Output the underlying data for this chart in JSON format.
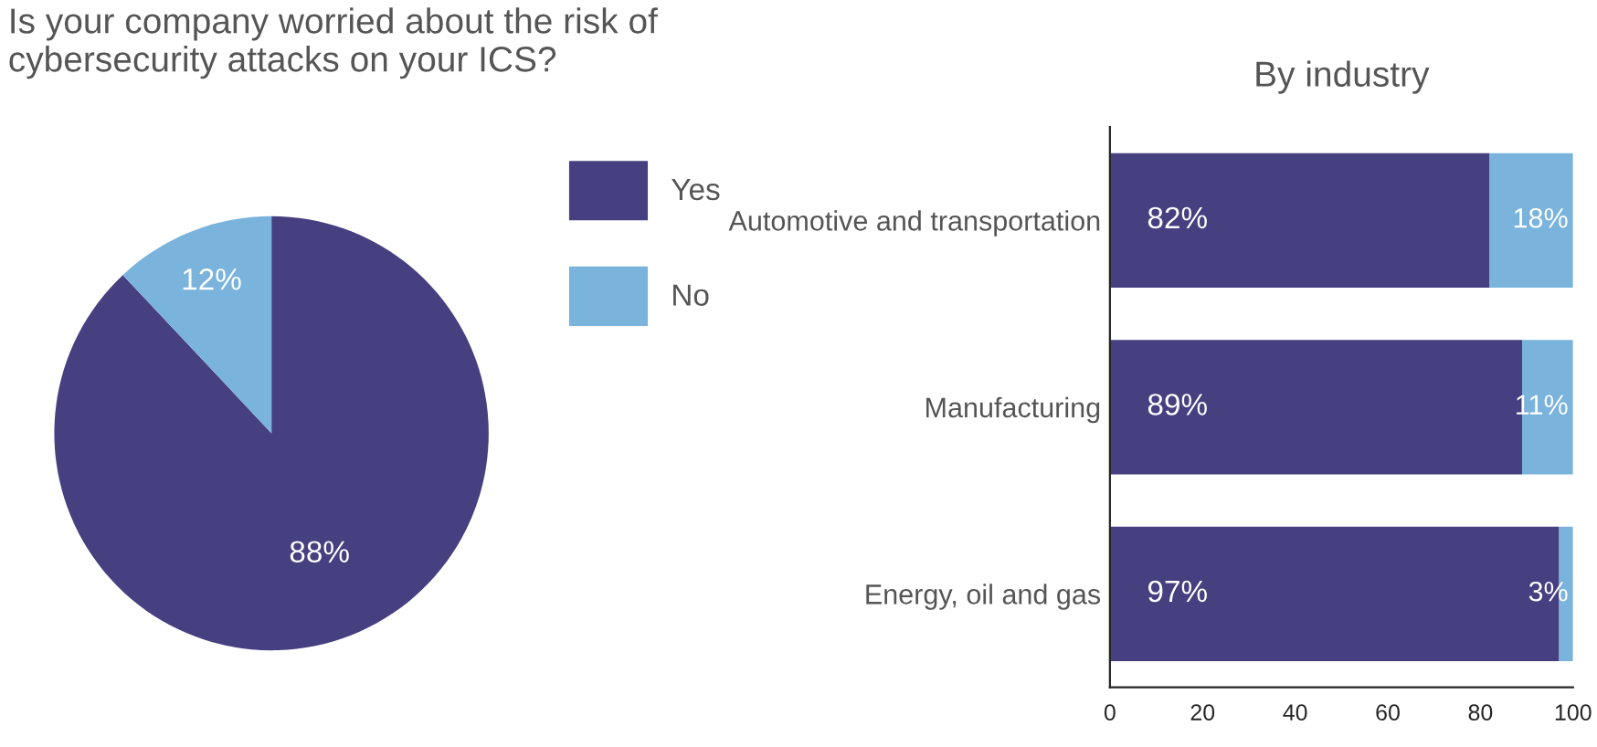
{
  "chart_data": [
    {
      "type": "pie",
      "title": "Is your company worried about the risk of\ncybersecurity attacks on your ICS?",
      "categories": [
        "Yes",
        "No"
      ],
      "values": [
        88,
        12
      ],
      "colors": [
        "#463f80",
        "#7ab3db"
      ],
      "value_labels": [
        "88%",
        "12%"
      ],
      "legend": "right"
    },
    {
      "type": "bar",
      "title": "By industry",
      "orientation": "horizontal",
      "stacked": true,
      "categories": [
        "Automotive and transportation",
        "Manufacturing",
        "Energy, oil and gas"
      ],
      "series": [
        {
          "color": "#463f80",
          "values": [
            82,
            89,
            97
          ],
          "value_labels": [
            "82%",
            "89%",
            "97%"
          ]
        },
        {
          "color": "#7ab3db",
          "values": [
            18,
            11,
            3
          ],
          "value_labels": [
            "18%",
            "11%",
            "3%"
          ]
        }
      ],
      "xlim": [
        0,
        100
      ],
      "xticks": [
        0,
        20,
        40,
        60,
        80,
        100
      ]
    }
  ]
}
